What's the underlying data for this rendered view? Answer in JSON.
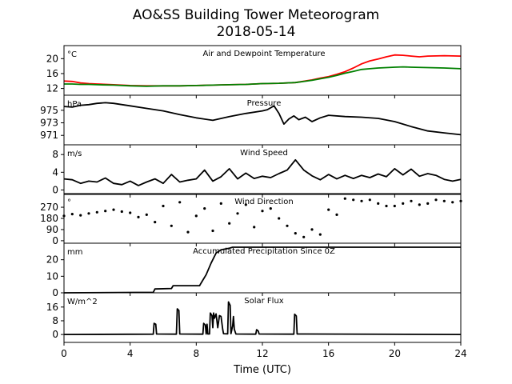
{
  "figure": {
    "title_line1": "AO&SS Building Tower Meteorogram",
    "title_line2": "2018-05-14",
    "xlabel": "Time (UTC)",
    "xticks": [
      0,
      4,
      8,
      12,
      16,
      20,
      24
    ],
    "xlim": [
      0,
      24
    ]
  },
  "chart_data": [
    {
      "type": "line",
      "title": "Air and Dewpoint Temperature",
      "unit": "°C",
      "ylim": [
        10.2,
        23.5
      ],
      "yticks": [
        12,
        16,
        20
      ],
      "series": [
        {
          "color": "#ff0000",
          "x": [
            0,
            0.5,
            1,
            1.5,
            2,
            3,
            4,
            5,
            6,
            7,
            8,
            9,
            10,
            11,
            12,
            13,
            14,
            15,
            15.5,
            16,
            16.5,
            17,
            17.5,
            18,
            18.5,
            19,
            19.5,
            20,
            20.5,
            21,
            21.5,
            22,
            23,
            24
          ],
          "y": [
            14.0,
            13.9,
            13.5,
            13.3,
            13.2,
            13.0,
            12.8,
            12.7,
            12.7,
            12.7,
            12.8,
            12.9,
            13.0,
            13.1,
            13.3,
            13.4,
            13.6,
            14.3,
            14.8,
            15.2,
            15.8,
            16.5,
            17.5,
            18.6,
            19.4,
            19.9,
            20.5,
            21.0,
            20.9,
            20.7,
            20.5,
            20.7,
            20.8,
            20.7
          ]
        },
        {
          "color": "#008000",
          "x": [
            0,
            0.5,
            1,
            1.5,
            2,
            3,
            4,
            5,
            6,
            7,
            8,
            9,
            10,
            11,
            12,
            13,
            14,
            15,
            15.5,
            16,
            16.5,
            17,
            17.5,
            18,
            18.5,
            19,
            19.5,
            20,
            20.5,
            21,
            22,
            23,
            24
          ],
          "y": [
            13.2,
            13.2,
            13.1,
            13.1,
            13.0,
            12.9,
            12.7,
            12.6,
            12.7,
            12.7,
            12.8,
            12.9,
            13.0,
            13.1,
            13.3,
            13.4,
            13.6,
            14.2,
            14.6,
            15.0,
            15.5,
            16.1,
            16.6,
            17.1,
            17.3,
            17.5,
            17.6,
            17.7,
            17.8,
            17.7,
            17.6,
            17.5,
            17.3
          ]
        }
      ]
    },
    {
      "type": "line",
      "title": "Pressure",
      "unit": "hPa",
      "ylim": [
        969.5,
        977.4
      ],
      "yticks": [
        971,
        973,
        975
      ],
      "series": [
        {
          "color": "#000000",
          "x": [
            0,
            0.5,
            1,
            1.5,
            2,
            2.5,
            3,
            4,
            5,
            6,
            7,
            8,
            9,
            10,
            11,
            12,
            12.3,
            12.7,
            13.0,
            13.3,
            13.6,
            13.9,
            14.2,
            14.6,
            15.0,
            15.5,
            16,
            17,
            18,
            19,
            20,
            21,
            22,
            23,
            24
          ],
          "y": [
            975.6,
            975.5,
            975.8,
            975.9,
            976.1,
            976.2,
            976.1,
            975.7,
            975.3,
            974.9,
            974.3,
            973.8,
            973.4,
            974.0,
            974.5,
            974.9,
            975.1,
            975.7,
            974.5,
            972.8,
            973.6,
            974.1,
            973.5,
            973.9,
            973.2,
            973.8,
            974.2,
            974.0,
            973.9,
            973.7,
            973.2,
            972.4,
            971.7,
            971.4,
            971.1
          ]
        }
      ]
    },
    {
      "type": "line",
      "title": "Wind Speed",
      "unit": "m/s",
      "ylim": [
        -1.0,
        10.2
      ],
      "yticks": [
        0,
        4,
        8
      ],
      "series": [
        {
          "color": "#000000",
          "x": [
            0,
            0.5,
            1,
            1.5,
            2,
            2.5,
            3,
            3.5,
            4,
            4.5,
            5,
            5.5,
            6,
            6.5,
            7,
            7.5,
            8,
            8.5,
            9,
            9.5,
            10,
            10.5,
            11,
            11.5,
            12,
            12.5,
            13,
            13.5,
            14,
            14.5,
            15,
            15.5,
            16,
            16.5,
            17,
            17.5,
            18,
            18.5,
            19,
            19.5,
            20,
            20.5,
            21,
            21.5,
            22,
            22.5,
            23,
            23.5,
            24
          ],
          "y": [
            2.5,
            2.3,
            1.5,
            2.0,
            1.8,
            2.7,
            1.5,
            1.2,
            2.0,
            1.0,
            1.8,
            2.5,
            1.5,
            3.5,
            1.8,
            2.2,
            2.5,
            4.5,
            2.0,
            3.0,
            4.8,
            2.5,
            3.8,
            2.6,
            3.1,
            2.8,
            3.7,
            4.5,
            6.8,
            4.5,
            3.2,
            2.3,
            3.5,
            2.5,
            3.3,
            2.6,
            3.3,
            2.8,
            3.6,
            3.0,
            4.8,
            3.4,
            4.7,
            3.1,
            3.7,
            3.3,
            2.4,
            2.0,
            2.4
          ]
        }
      ]
    },
    {
      "type": "scatter",
      "title": "Wind Direction",
      "unit": "°",
      "ylim": [
        -20,
        380
      ],
      "yticks": [
        0,
        90,
        180,
        270
      ],
      "series": [
        {
          "color": "#000000",
          "x": [
            0,
            0.5,
            1,
            1.5,
            2,
            2.5,
            3,
            3.5,
            4,
            4.5,
            5,
            5.5,
            6,
            6.5,
            7,
            7.5,
            8,
            8.5,
            9,
            9.5,
            10,
            10.5,
            11,
            11.5,
            12,
            12.5,
            13,
            13.5,
            14,
            14.5,
            15,
            15.5,
            16,
            16.5,
            17,
            17.5,
            18,
            18.5,
            19,
            19.5,
            20,
            20.5,
            21,
            21.5,
            22,
            22.5,
            23,
            23.5,
            24
          ],
          "y": [
            200,
            215,
            205,
            220,
            230,
            240,
            250,
            235,
            225,
            190,
            210,
            150,
            280,
            120,
            310,
            70,
            200,
            260,
            80,
            300,
            140,
            220,
            290,
            110,
            240,
            260,
            180,
            120,
            60,
            30,
            90,
            50,
            250,
            210,
            340,
            330,
            320,
            330,
            300,
            280,
            280,
            300,
            320,
            290,
            300,
            330,
            320,
            310,
            320
          ]
        }
      ]
    },
    {
      "type": "line",
      "title": "Accumulated Precipitation Since 0Z",
      "unit": "mm",
      "ylim": [
        0,
        30
      ],
      "yticks": [
        0,
        10,
        20
      ],
      "series": [
        {
          "color": "#000000",
          "x": [
            0,
            5.4,
            5.5,
            6.5,
            6.6,
            8.2,
            8.3,
            8.6,
            8.9,
            9.2,
            9.5,
            10.0,
            10.2,
            24
          ],
          "y": [
            0,
            0.3,
            2.3,
            2.6,
            4.3,
            4.3,
            6.0,
            11.0,
            18.0,
            24.0,
            26.0,
            27.0,
            27.6,
            27.6
          ]
        }
      ]
    },
    {
      "type": "line",
      "title": "Solar Flux",
      "unit": "W/m^2",
      "ylim": [
        -4.6,
        24.3
      ],
      "yticks": [
        0,
        8,
        16
      ],
      "series": [
        {
          "color": "#000000",
          "x": [
            0,
            5.4,
            5.45,
            5.55,
            5.6,
            6.8,
            6.85,
            6.95,
            7.0,
            8.4,
            8.45,
            8.55,
            8.6,
            8.65,
            8.7,
            8.8,
            8.85,
            8.95,
            9.0,
            9.05,
            9.1,
            9.2,
            9.3,
            9.4,
            9.5,
            9.6,
            9.65,
            9.9,
            9.95,
            10.05,
            10.1,
            10.2,
            10.25,
            10.3,
            10.4,
            11.6,
            11.65,
            11.75,
            11.8,
            13.9,
            13.95,
            14.05,
            14.1,
            24
          ],
          "y": [
            0,
            0.2,
            6.5,
            6.0,
            0.3,
            0.2,
            15.0,
            14.0,
            0.3,
            0.2,
            6.5,
            5.5,
            0.3,
            6.0,
            0.3,
            0.3,
            12.5,
            11.0,
            4.0,
            12.5,
            9.5,
            12.0,
            4.0,
            11.0,
            10.5,
            3.0,
            0.5,
            0.4,
            19.0,
            17.0,
            0.5,
            5.0,
            10.5,
            3.0,
            0.3,
            0.2,
            2.8,
            2.0,
            0.3,
            0.2,
            11.8,
            10.8,
            0.3,
            0
          ]
        }
      ]
    }
  ]
}
